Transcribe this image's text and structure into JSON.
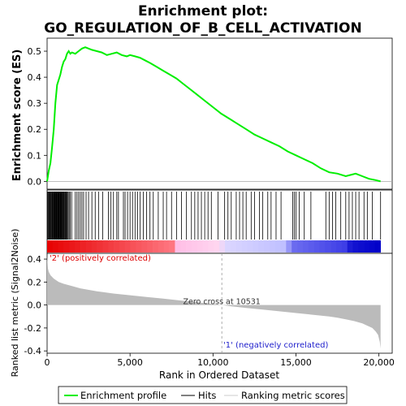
{
  "chart_data": {
    "type": "line",
    "title_line1": "Enrichment plot:",
    "title_line2": "GO_REGULATION_OF_B_CELL_ACTIVATION",
    "es_panel": {
      "ylabel": "Enrichment score (ES)",
      "ylim": [
        -0.03,
        0.55
      ],
      "yticks": [
        "0.0",
        "0.1",
        "0.2",
        "0.3",
        "0.4",
        "0.5"
      ],
      "ytick_values": [
        0.0,
        0.1,
        0.2,
        0.3,
        0.4,
        0.5
      ],
      "series": [
        {
          "color": "#00ee00",
          "x": [
            0,
            100,
            200,
            300,
            400,
            500,
            600,
            700,
            800,
            900,
            1000,
            1100,
            1200,
            1300,
            1400,
            1500,
            1700,
            1900,
            2100,
            2300,
            2500,
            2700,
            3000,
            3300,
            3600,
            3900,
            4200,
            4500,
            4800,
            5000,
            5300,
            5600,
            5900,
            6200,
            6600,
            7000,
            7400,
            7800,
            8200,
            8600,
            9000,
            9500,
            10000,
            10500,
            11000,
            11500,
            12000,
            12500,
            13000,
            13500,
            14000,
            14500,
            15000,
            15500,
            16000,
            16500,
            17000,
            17500,
            18000,
            18300,
            18600,
            19000,
            19400,
            19800,
            20100
          ],
          "y": [
            0.0,
            0.04,
            0.07,
            0.13,
            0.2,
            0.3,
            0.37,
            0.39,
            0.41,
            0.44,
            0.46,
            0.47,
            0.49,
            0.5,
            0.49,
            0.495,
            0.49,
            0.5,
            0.51,
            0.515,
            0.51,
            0.505,
            0.5,
            0.495,
            0.485,
            0.49,
            0.495,
            0.485,
            0.48,
            0.485,
            0.48,
            0.475,
            0.465,
            0.455,
            0.44,
            0.425,
            0.41,
            0.395,
            0.375,
            0.355,
            0.335,
            0.31,
            0.285,
            0.26,
            0.24,
            0.22,
            0.2,
            0.18,
            0.165,
            0.15,
            0.135,
            0.115,
            0.1,
            0.085,
            0.07,
            0.05,
            0.035,
            0.03,
            0.02,
            0.025,
            0.03,
            0.02,
            0.01,
            0.005,
            0.0
          ]
        }
      ]
    },
    "hits": [
      40,
      70,
      110,
      150,
      190,
      230,
      260,
      300,
      330,
      360,
      400,
      430,
      460,
      490,
      520,
      550,
      580,
      610,
      640,
      670,
      700,
      730,
      760,
      790,
      820,
      850,
      880,
      910,
      940,
      980,
      1010,
      1050,
      1090,
      1130,
      1170,
      1220,
      1270,
      1330,
      1400,
      1480,
      1700,
      1800,
      1900,
      2000,
      2100,
      2200,
      2350,
      2500,
      2700,
      2900,
      3100,
      3350,
      3700,
      3850,
      4000,
      4200,
      4300,
      4600,
      4700,
      4850,
      5000,
      5150,
      5300,
      5450,
      5600,
      5800,
      6000,
      6200,
      6400,
      6700,
      7000,
      7200,
      7500,
      7800,
      8100,
      8400,
      8700,
      8900,
      9100,
      9300,
      9500,
      9700,
      9900,
      10300,
      10700,
      10900,
      11100,
      11400,
      11600,
      11800,
      12000,
      12300,
      12500,
      12800,
      13000,
      13300,
      13500,
      13800,
      14100,
      14800,
      14900,
      15000,
      15200,
      15500,
      15900,
      16800,
      17000,
      17200,
      17400,
      17700,
      18000,
      18200,
      18400,
      18600,
      18800,
      19100,
      19300,
      19600,
      20100
    ],
    "ranking_panel": {
      "ylabel": "Ranked list metric (Signal2Noise)",
      "ylim": [
        -0.42,
        0.45
      ],
      "yticks": [
        "0.4",
        "0.2",
        "0.0",
        "-0.2",
        "-0.4"
      ],
      "ytick_values": [
        0.4,
        0.2,
        0.0,
        -0.2,
        -0.4
      ],
      "metric_curve": {
        "x": [
          0,
          50,
          100,
          200,
          400,
          700,
          1000,
          1500,
          2000,
          3000,
          4000,
          5000,
          6000,
          7000,
          8000,
          9000,
          10000,
          10531,
          11000,
          12000,
          13000,
          14000,
          15000,
          16000,
          17000,
          17500,
          18000,
          18500,
          19000,
          19300,
          19600,
          19800,
          19950,
          20050,
          20100
        ],
        "y": [
          0.43,
          0.32,
          0.29,
          0.26,
          0.23,
          0.2,
          0.185,
          0.165,
          0.145,
          0.12,
          0.1,
          0.085,
          0.07,
          0.055,
          0.04,
          0.025,
          0.01,
          0.0,
          -0.01,
          -0.025,
          -0.04,
          -0.055,
          -0.07,
          -0.085,
          -0.1,
          -0.11,
          -0.125,
          -0.14,
          -0.16,
          -0.18,
          -0.2,
          -0.23,
          -0.26,
          -0.32,
          -0.38
        ]
      },
      "zero_cross_label": "Zero cross at 10531",
      "zero_cross_x": 10531,
      "pos_label": "'2' (positively correlated)",
      "neg_label": "'1' (negatively correlated)"
    },
    "x_axis": {
      "xlabel": "Rank in Ordered Dataset",
      "xlim": [
        0,
        20800
      ],
      "xticks": [
        "0",
        "5,000",
        "10,000",
        "15,000",
        "20,000"
      ],
      "xtick_values": [
        0,
        5000,
        10000,
        15000,
        20000
      ]
    },
    "heat_bar": {
      "n": 20100,
      "colors": [
        "#ff0000",
        "#ffb0c0",
        "#c0c0ff",
        "#0000ff"
      ]
    },
    "legend": {
      "items": [
        {
          "label": "Enrichment profile",
          "color": "#00ee00",
          "kind": "line"
        },
        {
          "label": "Hits",
          "color": "#000000",
          "kind": "line"
        },
        {
          "label": "Ranking metric scores",
          "color": "#cccccc",
          "kind": "line"
        }
      ]
    },
    "colors": {
      "profile": "#00ee00",
      "pos_label": "#dd0000",
      "neg_label": "#2020cc",
      "metric_fill": "#bbbbbb"
    }
  }
}
